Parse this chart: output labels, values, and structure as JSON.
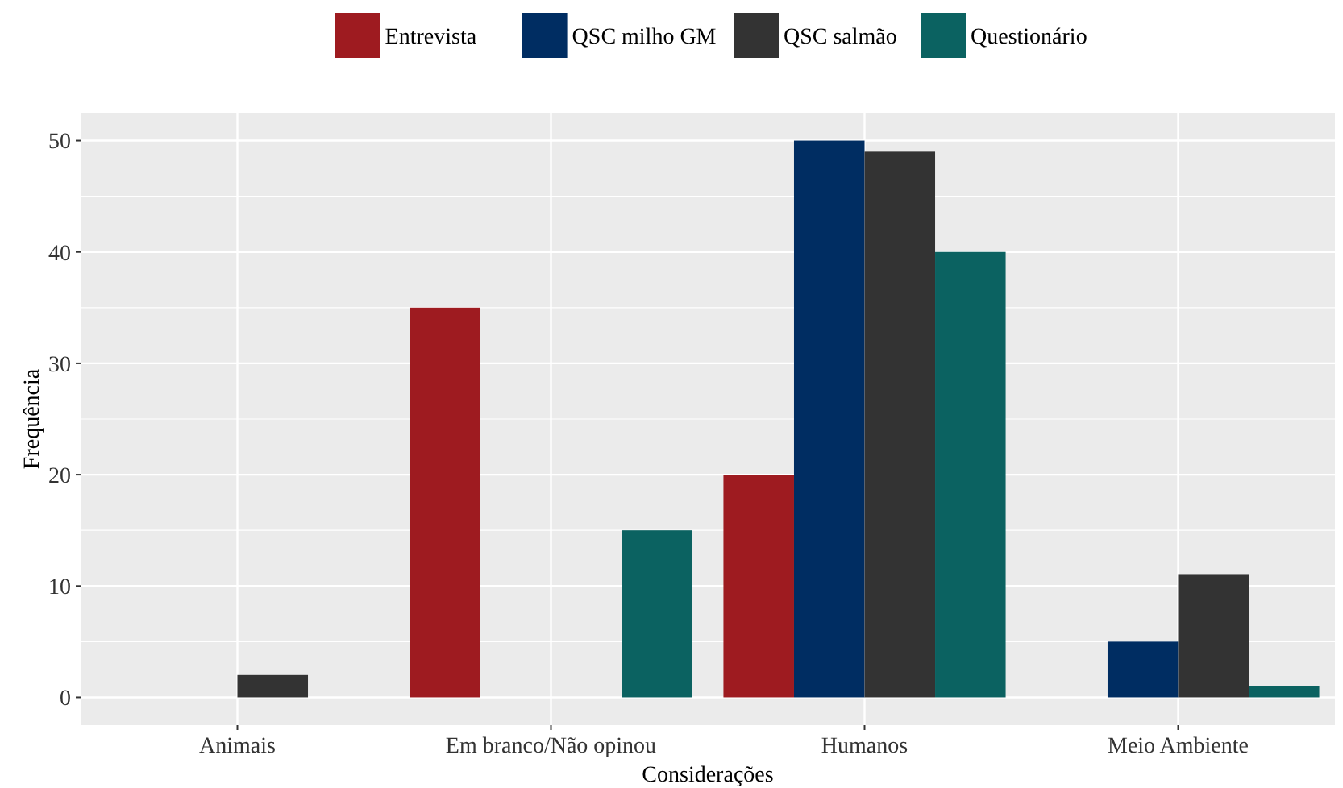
{
  "chart_data": {
    "type": "bar",
    "xlabel": "Considerações",
    "ylabel": "Frequência",
    "categories": [
      "Animais",
      "Em branco/Não opinou",
      "Humanos",
      "Meio Ambiente"
    ],
    "series": [
      {
        "name": "Entrevista",
        "color": "#9e1b20",
        "values": [
          0,
          35,
          20,
          0
        ]
      },
      {
        "name": "QSC milho GM",
        "color": "#002d62",
        "values": [
          0,
          0,
          50,
          5
        ]
      },
      {
        "name": "QSC salmão",
        "color": "#333333",
        "values": [
          2,
          0,
          49,
          11
        ]
      },
      {
        "name": "Questionário",
        "color": "#0b6261",
        "values": [
          0,
          15,
          40,
          1
        ]
      }
    ],
    "ylim": [
      -2.5,
      52.5
    ],
    "yticks": [
      0,
      10,
      20,
      30,
      40,
      50
    ],
    "grid": true,
    "legend": "top"
  }
}
